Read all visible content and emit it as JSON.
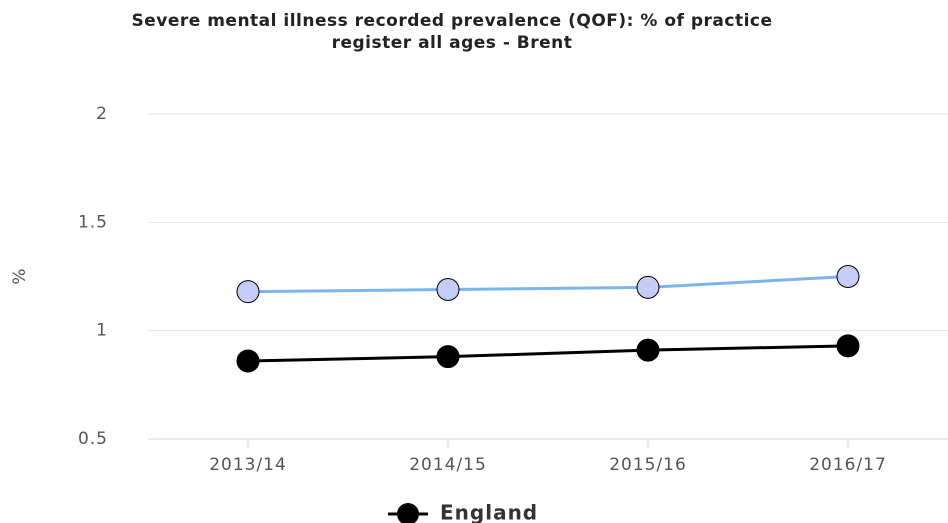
{
  "chart_data": {
    "type": "line",
    "title": [
      "Severe mental illness recorded prevalence (QOF): % of practice",
      "register all ages - Brent"
    ],
    "y_label": "%",
    "categories": [
      "2013/14",
      "2014/15",
      "2015/16",
      "2016/17"
    ],
    "series": [
      {
        "color": "#7cb5ec",
        "marker_color": "#c5ccf7",
        "values": [
          1.18,
          1.19,
          1.2,
          1.25
        ]
      },
      {
        "name": "England",
        "color": "#000000",
        "marker_color": "#000000",
        "values": [
          0.86,
          0.88,
          0.91,
          0.93
        ]
      }
    ],
    "ylim": [
      0.5,
      2
    ],
    "yticks": [
      0.5,
      1,
      1.5,
      2
    ],
    "grid": true
  }
}
